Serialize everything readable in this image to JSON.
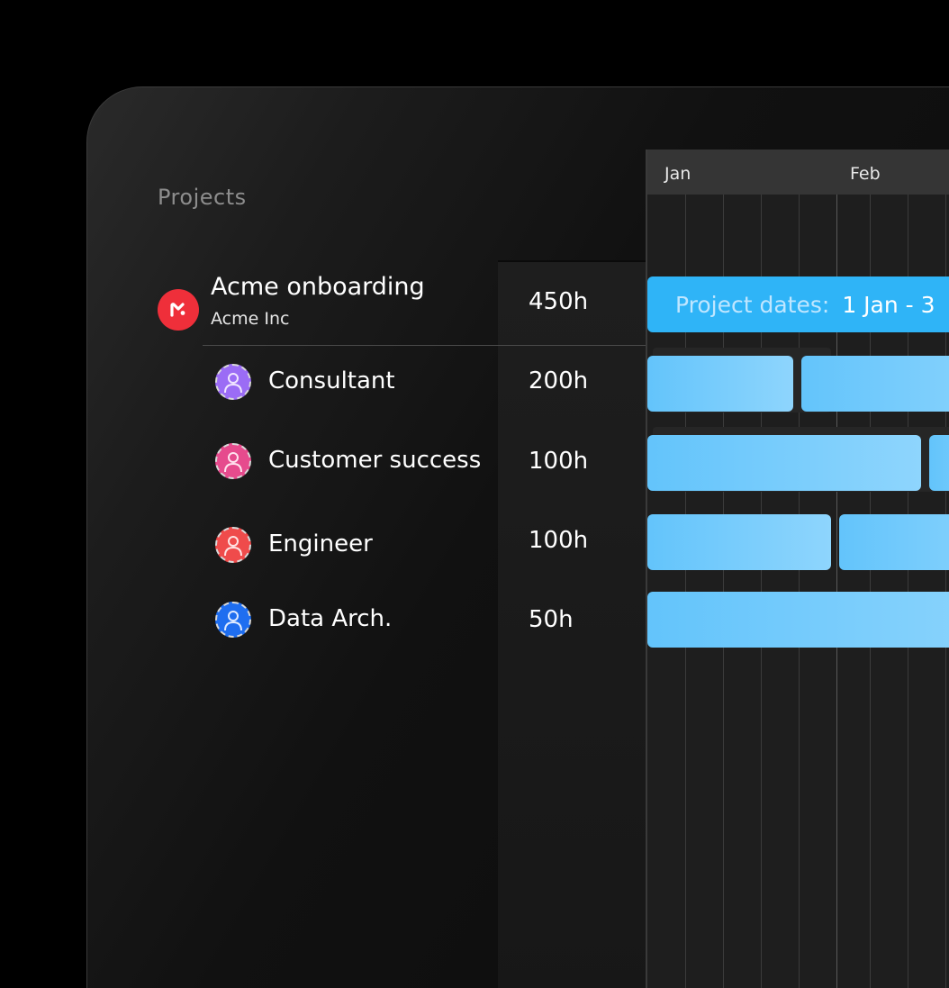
{
  "sidebar": {
    "title": "Projects"
  },
  "project": {
    "name": "Acme onboarding",
    "client": "Acme Inc",
    "hours": "450h",
    "logo_icon": "acme-logo-icon",
    "logo_color": "#ef2f3a"
  },
  "roles": [
    {
      "name": "Consultant",
      "hours": "200h",
      "avatar_color": "#9b6cf5"
    },
    {
      "name": "Customer success",
      "hours": "100h",
      "avatar_color": "#e64b8d"
    },
    {
      "name": "Engineer",
      "hours": "100h",
      "avatar_color": "#ef4b4b"
    },
    {
      "name": "Data Arch.",
      "hours": "50h",
      "avatar_color": "#1f6ef0"
    }
  ],
  "timeline": {
    "months": [
      "Jan",
      "Feb"
    ],
    "project_bar": {
      "label": "Project dates:",
      "range": "1 Jan - 3"
    },
    "bar_color": "#2fb4f7",
    "role_bar_color": "#79ccfc"
  }
}
